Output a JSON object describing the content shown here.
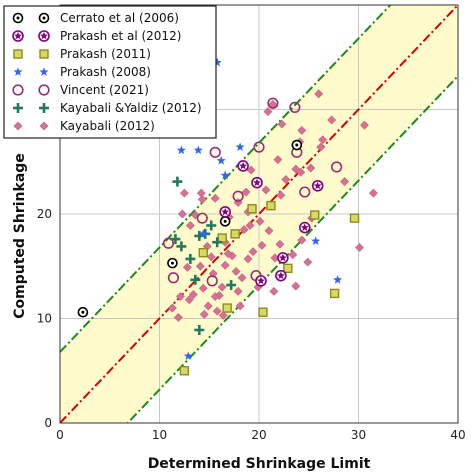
{
  "chart_data": {
    "type": "scatter",
    "title": "",
    "xlabel": "Determined Shrinkage Limit",
    "ylabel": "Computed Shrinkage",
    "xlim": [
      0,
      40
    ],
    "ylim": [
      0,
      40
    ],
    "xticks": [
      0,
      10,
      20,
      30,
      40
    ],
    "yticks": [
      0,
      10,
      20
    ],
    "grid": true,
    "legend_position": "top-left",
    "band": {
      "fill": "#fffbcc",
      "center_line_color": "#d40000",
      "edge_line_color": "#1a8a1a",
      "half_width": 6.8
    },
    "series": [
      {
        "name": "Cerrato et al (2006)",
        "marker": "dotted-circle",
        "color": "#000000",
        "points": [
          [
            2.3,
            10.6
          ],
          [
            11.3,
            15.3
          ],
          [
            23.8,
            26.6
          ],
          [
            16.6,
            19.3
          ]
        ]
      },
      {
        "name": "Prakash et al (2012)",
        "marker": "star-in-circle",
        "color": "#800080",
        "points": [
          [
            16.6,
            20.2
          ],
          [
            18.4,
            24.6
          ],
          [
            19.8,
            23.0
          ],
          [
            22.4,
            15.8
          ],
          [
            24.6,
            18.7
          ],
          [
            25.9,
            22.7
          ],
          [
            22.2,
            14.1
          ],
          [
            20.2,
            13.6
          ]
        ]
      },
      {
        "name": "Prakash (2011)",
        "marker": "square",
        "color": "#8c8c1a",
        "points": [
          [
            12.5,
            5.0
          ],
          [
            16.8,
            11.0
          ],
          [
            20.4,
            10.6
          ],
          [
            27.6,
            12.4
          ],
          [
            29.6,
            19.6
          ],
          [
            19.3,
            20.5
          ],
          [
            16.3,
            17.7
          ],
          [
            22.9,
            14.8
          ],
          [
            17.6,
            18.1
          ],
          [
            14.4,
            16.3
          ],
          [
            25.6,
            19.9
          ],
          [
            21.2,
            20.8
          ]
        ]
      },
      {
        "name": "Prakash (2008)",
        "marker": "star",
        "color": "#3366ee",
        "points": [
          [
            15.8,
            34.5
          ],
          [
            12.9,
            6.4
          ],
          [
            27.9,
            13.7
          ],
          [
            25.7,
            17.4
          ],
          [
            13.9,
            26.1
          ],
          [
            16.2,
            25.1
          ],
          [
            16.6,
            23.7
          ],
          [
            18.1,
            26.4
          ],
          [
            12.2,
            26.1
          ],
          [
            14.4,
            18.1
          ]
        ]
      },
      {
        "name": "Vincent (2021)",
        "marker": "open-circle",
        "color": "#9c2d70",
        "points": [
          [
            10.9,
            17.2
          ],
          [
            15.6,
            25.9
          ],
          [
            20.0,
            26.4
          ],
          [
            21.4,
            30.6
          ],
          [
            23.6,
            30.2
          ],
          [
            23.8,
            25.9
          ],
          [
            15.3,
            13.6
          ],
          [
            11.4,
            13.9
          ],
          [
            19.7,
            14.1
          ],
          [
            17.9,
            21.7
          ],
          [
            24.6,
            22.1
          ],
          [
            27.8,
            24.5
          ],
          [
            14.3,
            19.6
          ]
        ]
      },
      {
        "name": "Kayabali &Yaldiz (2012)",
        "marker": "plus",
        "color": "#1f7a5c",
        "points": [
          [
            11.8,
            23.1
          ],
          [
            11.6,
            17.6
          ],
          [
            12.2,
            16.9
          ],
          [
            13.1,
            15.7
          ],
          [
            14.0,
            17.9
          ],
          [
            14.6,
            18.1
          ],
          [
            15.2,
            18.9
          ],
          [
            15.8,
            17.3
          ],
          [
            14.0,
            8.9
          ],
          [
            17.2,
            13.2
          ],
          [
            13.6,
            13.7
          ]
        ]
      },
      {
        "name": "Kayabali (2012)",
        "marker": "diamond",
        "color": "#d87093",
        "points": [
          [
            26.0,
            31.5
          ],
          [
            21.4,
            30.5
          ],
          [
            24.3,
            28.0
          ],
          [
            30.6,
            28.5
          ],
          [
            31.5,
            22.0
          ],
          [
            30.1,
            16.8
          ],
          [
            12.5,
            22.0
          ],
          [
            12.3,
            20.0
          ],
          [
            14.2,
            22.0
          ],
          [
            15.6,
            21.5
          ],
          [
            17.9,
            21.1
          ],
          [
            18.9,
            20.2
          ],
          [
            19.1,
            18.9
          ],
          [
            20.1,
            19.3
          ],
          [
            21.0,
            18.4
          ],
          [
            22.1,
            17.1
          ],
          [
            23.4,
            16.1
          ],
          [
            24.3,
            17.5
          ],
          [
            22.2,
            21.8
          ],
          [
            24.2,
            24.0
          ],
          [
            26.4,
            27.1
          ],
          [
            28.6,
            23.1
          ],
          [
            25.3,
            19.6
          ],
          [
            13.1,
            18.9
          ],
          [
            13.6,
            19.9
          ],
          [
            14.8,
            16.9
          ],
          [
            15.4,
            14.3
          ],
          [
            16.0,
            12.2
          ],
          [
            16.6,
            15.1
          ],
          [
            17.3,
            16.0
          ],
          [
            17.7,
            14.5
          ],
          [
            18.3,
            13.9
          ],
          [
            18.9,
            15.7
          ],
          [
            19.4,
            16.4
          ],
          [
            20.3,
            17.0
          ],
          [
            21.6,
            15.8
          ],
          [
            14.4,
            12.9
          ],
          [
            14.9,
            11.2
          ],
          [
            15.8,
            10.7
          ],
          [
            16.4,
            10.3
          ],
          [
            12.1,
            12.1
          ],
          [
            13.0,
            11.8
          ],
          [
            12.8,
            14.9
          ],
          [
            14.1,
            15.0
          ],
          [
            15.2,
            15.9
          ],
          [
            18.5,
            18.5
          ],
          [
            20.7,
            22.3
          ],
          [
            22.7,
            23.3
          ],
          [
            23.7,
            24.3
          ],
          [
            19.2,
            24.2
          ],
          [
            16.9,
            16.2
          ],
          [
            17.0,
            19.7
          ],
          [
            11.3,
            11.0
          ],
          [
            11.9,
            10.1
          ],
          [
            13.4,
            12.3
          ],
          [
            14.5,
            10.4
          ],
          [
            15.6,
            12.1
          ],
          [
            16.3,
            13.0
          ],
          [
            17.9,
            12.6
          ],
          [
            18.1,
            11.2
          ],
          [
            19.9,
            13.0
          ],
          [
            21.5,
            12.6
          ],
          [
            23.7,
            13.1
          ],
          [
            24.9,
            15.4
          ],
          [
            16.6,
            17.3
          ],
          [
            14.3,
            21.4
          ],
          [
            18.7,
            22.1
          ],
          [
            21.9,
            25.2
          ],
          [
            24.1,
            26.9
          ],
          [
            25.2,
            24.4
          ],
          [
            26.2,
            26.4
          ],
          [
            27.3,
            29.0
          ],
          [
            22.3,
            28.6
          ],
          [
            20.9,
            29.8
          ]
        ]
      }
    ]
  }
}
